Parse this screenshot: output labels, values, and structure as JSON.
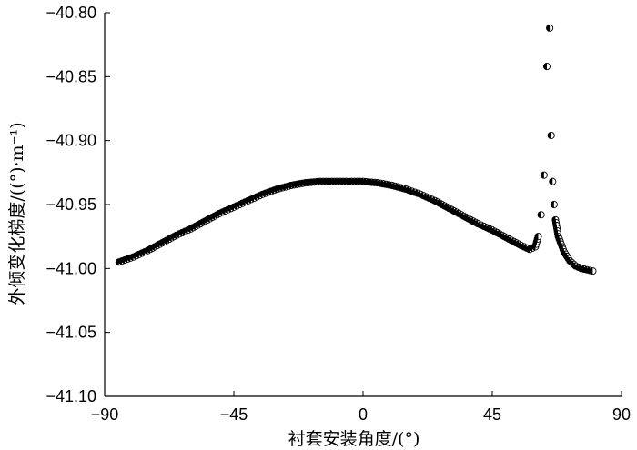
{
  "chart_data": {
    "type": "scatter",
    "title": "",
    "xlabel": "衬套安装角度/(°)",
    "ylabel": "外倾变化梯度/((°)·m⁻¹)",
    "xlim": [
      -90,
      90
    ],
    "ylim": [
      -41.1,
      -40.8
    ],
    "x_ticks": [
      "−90",
      "−45",
      "0",
      "45",
      "90"
    ],
    "y_ticks": [
      "−40.80",
      "−40.85",
      "−40.90",
      "−40.95",
      "−41.00",
      "−41.05",
      "−41.10"
    ],
    "x_tick_values": [
      -90,
      -45,
      0,
      45,
      90
    ],
    "y_tick_values": [
      -40.8,
      -40.85,
      -40.9,
      -40.95,
      -41.0,
      -41.05,
      -41.1
    ],
    "grid": false,
    "legend": "none",
    "marker": "half-filled circle",
    "color": "#000000",
    "series": [
      {
        "x": [
          -85,
          -80,
          -75,
          -70,
          -65,
          -60,
          -55,
          -50,
          -45,
          -40,
          -35,
          -30,
          -25,
          -20,
          -15,
          -10,
          -5,
          0,
          5,
          10,
          15,
          20,
          25,
          30,
          35,
          40,
          45,
          50,
          55,
          58,
          60,
          61,
          62,
          63,
          64,
          65,
          65.5,
          66,
          66.5,
          67,
          68,
          70,
          72,
          74,
          76,
          78,
          80
        ],
        "y": [
          -40.995,
          -40.991,
          -40.986,
          -40.98,
          -40.974,
          -40.969,
          -40.963,
          -40.957,
          -40.952,
          -40.947,
          -40.942,
          -40.938,
          -40.935,
          -40.933,
          -40.932,
          -40.932,
          -40.932,
          -40.932,
          -40.933,
          -40.935,
          -40.938,
          -40.942,
          -40.947,
          -40.953,
          -40.959,
          -40.965,
          -40.97,
          -40.976,
          -40.982,
          -40.985,
          -40.983,
          -40.975,
          -40.958,
          -40.927,
          -40.842,
          -40.812,
          -40.896,
          -40.932,
          -40.95,
          -40.962,
          -40.975,
          -40.987,
          -40.994,
          -40.998,
          -41.0,
          -41.001,
          -41.002
        ]
      }
    ]
  }
}
